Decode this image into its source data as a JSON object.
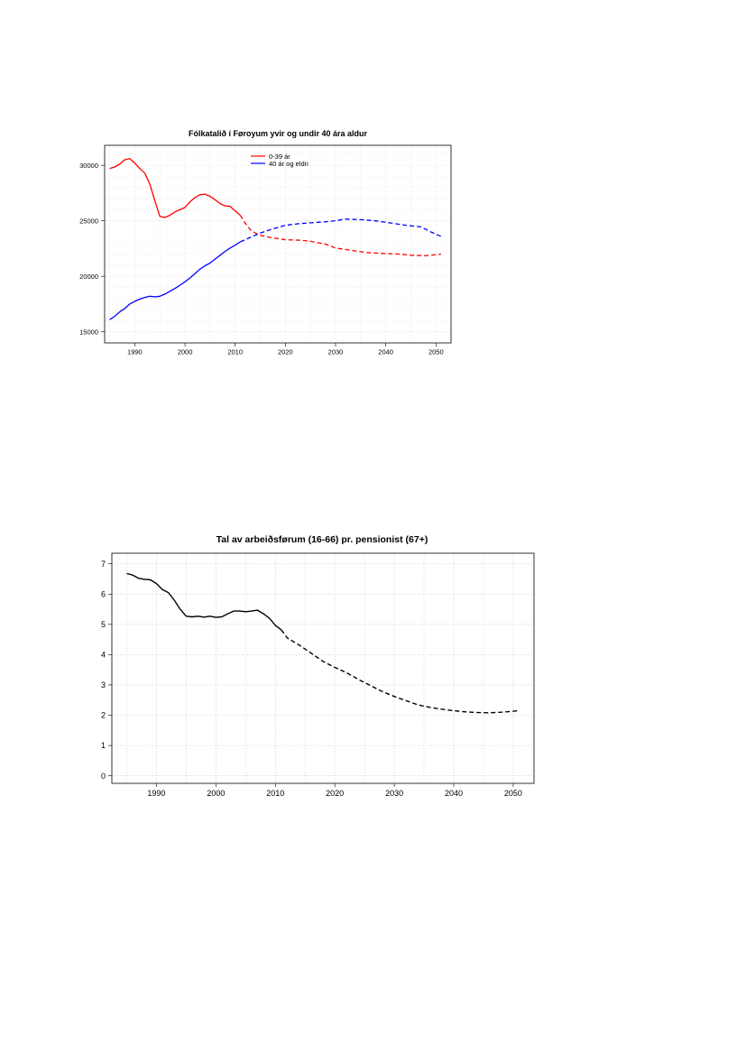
{
  "chart_data": [
    {
      "type": "line",
      "title": "Fólkatalið í Føroyum yvir og undir 40 ára aldur",
      "xlabel": "",
      "ylabel": "",
      "xlim": [
        1984,
        2053
      ],
      "ylim": [
        14000,
        31800
      ],
      "x_ticks": [
        "1990",
        "2000",
        "2010",
        "2020",
        "2030",
        "2040",
        "2050"
      ],
      "y_ticks": [
        "15000",
        "20000",
        "25000",
        "30000"
      ],
      "grid": true,
      "legend_position": "top-center",
      "series": [
        {
          "name": "0-39 ár",
          "color": "#ff0000",
          "observed": [
            [
              1985,
              29700
            ],
            [
              1986,
              29850
            ],
            [
              1987,
              30100
            ],
            [
              1988,
              30500
            ],
            [
              1989,
              30600
            ],
            [
              1990,
              30200
            ],
            [
              1991,
              29700
            ],
            [
              1992,
              29300
            ],
            [
              1993,
              28300
            ],
            [
              1994,
              26800
            ],
            [
              1995,
              25400
            ],
            [
              1996,
              25300
            ],
            [
              1997,
              25500
            ],
            [
              1998,
              25800
            ],
            [
              1999,
              26000
            ],
            [
              2000,
              26200
            ],
            [
              2001,
              26700
            ],
            [
              2002,
              27100
            ],
            [
              2003,
              27350
            ],
            [
              2004,
              27400
            ],
            [
              2005,
              27200
            ],
            [
              2006,
              26900
            ],
            [
              2007,
              26550
            ],
            [
              2008,
              26350
            ],
            [
              2009,
              26300
            ],
            [
              2010,
              25900
            ],
            [
              2011,
              25500
            ]
          ],
          "projected": [
            [
              2011,
              25500
            ],
            [
              2012,
              24800
            ],
            [
              2013,
              24200
            ],
            [
              2014,
              23900
            ],
            [
              2015,
              23700
            ],
            [
              2017,
              23500
            ],
            [
              2020,
              23300
            ],
            [
              2023,
              23250
            ],
            [
              2025,
              23150
            ],
            [
              2028,
              22900
            ],
            [
              2030,
              22550
            ],
            [
              2033,
              22350
            ],
            [
              2036,
              22150
            ],
            [
              2040,
              22050
            ],
            [
              2043,
              22000
            ],
            [
              2045,
              21900
            ],
            [
              2048,
              21850
            ],
            [
              2051,
              22000
            ]
          ]
        },
        {
          "name": "40 ár og eldri",
          "color": "#0000ff",
          "observed": [
            [
              1985,
              16100
            ],
            [
              1986,
              16400
            ],
            [
              1987,
              16800
            ],
            [
              1988,
              17100
            ],
            [
              1989,
              17500
            ],
            [
              1990,
              17750
            ],
            [
              1991,
              17950
            ],
            [
              1992,
              18100
            ],
            [
              1993,
              18200
            ],
            [
              1994,
              18150
            ],
            [
              1995,
              18200
            ],
            [
              1996,
              18400
            ],
            [
              1997,
              18650
            ],
            [
              1998,
              18900
            ],
            [
              1999,
              19200
            ],
            [
              2000,
              19500
            ],
            [
              2001,
              19850
            ],
            [
              2002,
              20250
            ],
            [
              2003,
              20650
            ],
            [
              2004,
              20950
            ],
            [
              2005,
              21200
            ],
            [
              2006,
              21550
            ],
            [
              2007,
              21900
            ],
            [
              2008,
              22250
            ],
            [
              2009,
              22550
            ],
            [
              2010,
              22800
            ],
            [
              2011,
              23100
            ]
          ],
          "projected": [
            [
              2011,
              23100
            ],
            [
              2013,
              23500
            ],
            [
              2015,
              23900
            ],
            [
              2017,
              24200
            ],
            [
              2020,
              24600
            ],
            [
              2023,
              24750
            ],
            [
              2026,
              24850
            ],
            [
              2029,
              24950
            ],
            [
              2032,
              25150
            ],
            [
              2035,
              25100
            ],
            [
              2038,
              25000
            ],
            [
              2041,
              24800
            ],
            [
              2044,
              24600
            ],
            [
              2047,
              24450
            ],
            [
              2049,
              24000
            ],
            [
              2051,
              23600
            ]
          ]
        }
      ]
    },
    {
      "type": "line",
      "title": "Tal av arbeiðsførum (16-66) pr. pensionist (67+)",
      "xlabel": "",
      "ylabel": "",
      "xlim": [
        1982.5,
        2053.5
      ],
      "ylim": [
        -0.25,
        7.35
      ],
      "x_ticks": [
        "1990",
        "2000",
        "2010",
        "2020",
        "2030",
        "2040",
        "2050"
      ],
      "y_ticks": [
        "0",
        "1",
        "2",
        "3",
        "4",
        "5",
        "6",
        "7"
      ],
      "grid": true,
      "series": [
        {
          "color": "#000000",
          "observed": [
            [
              1985,
              6.68
            ],
            [
              1986,
              6.63
            ],
            [
              1987,
              6.52
            ],
            [
              1988,
              6.49
            ],
            [
              1989,
              6.47
            ],
            [
              1990,
              6.35
            ],
            [
              1991,
              6.15
            ],
            [
              1992,
              6.05
            ],
            [
              1993,
              5.8
            ],
            [
              1994,
              5.5
            ],
            [
              1995,
              5.27
            ],
            [
              1996,
              5.25
            ],
            [
              1997,
              5.27
            ],
            [
              1998,
              5.24
            ],
            [
              1999,
              5.27
            ],
            [
              2000,
              5.23
            ],
            [
              2001,
              5.25
            ],
            [
              2002,
              5.35
            ],
            [
              2003,
              5.44
            ],
            [
              2004,
              5.44
            ],
            [
              2005,
              5.42
            ],
            [
              2006,
              5.44
            ],
            [
              2007,
              5.47
            ],
            [
              2008,
              5.35
            ],
            [
              2009,
              5.2
            ],
            [
              2010,
              4.97
            ],
            [
              2011,
              4.82
            ]
          ],
          "projected": [
            [
              2011,
              4.82
            ],
            [
              2012,
              4.55
            ],
            [
              2014,
              4.32
            ],
            [
              2016,
              4.05
            ],
            [
              2018,
              3.78
            ],
            [
              2020,
              3.58
            ],
            [
              2022,
              3.4
            ],
            [
              2024,
              3.18
            ],
            [
              2026,
              2.98
            ],
            [
              2028,
              2.78
            ],
            [
              2030,
              2.62
            ],
            [
              2032,
              2.48
            ],
            [
              2034,
              2.34
            ],
            [
              2036,
              2.26
            ],
            [
              2038,
              2.2
            ],
            [
              2040,
              2.15
            ],
            [
              2042,
              2.11
            ],
            [
              2044,
              2.09
            ],
            [
              2046,
              2.08
            ],
            [
              2048,
              2.1
            ],
            [
              2050,
              2.13
            ],
            [
              2051,
              2.15
            ]
          ]
        }
      ]
    }
  ]
}
